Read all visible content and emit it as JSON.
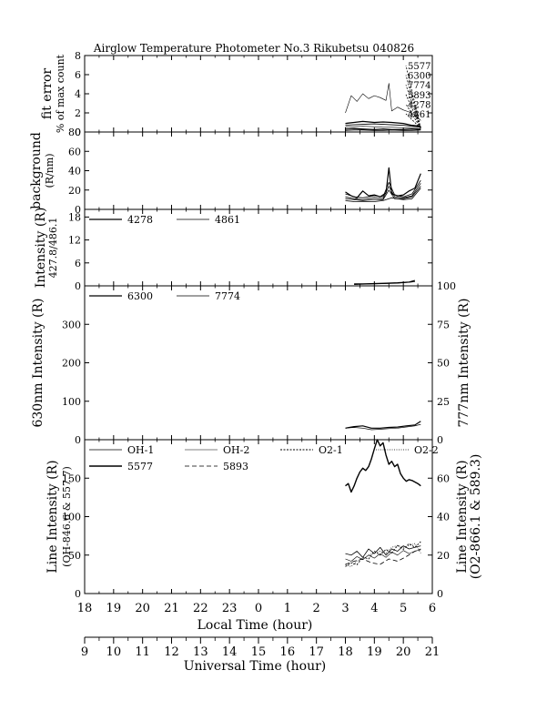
{
  "title": "Airglow Temperature Photometer No.3   Rikubetsu   040826",
  "colors": {
    "line": "#000000",
    "background": "#ffffff"
  },
  "axes": {
    "local_time": {
      "label": "Local Time (hour)",
      "ticks": [
        "18",
        "19",
        "20",
        "21",
        "22",
        "23",
        "0",
        "1",
        "2",
        "3",
        "4",
        "5",
        "6"
      ],
      "range": [
        18,
        30
      ]
    },
    "universal_time": {
      "label": "Universal Time (hour)",
      "ticks": [
        "9",
        "10",
        "11",
        "12",
        "13",
        "14",
        "15",
        "16",
        "17",
        "18",
        "19",
        "20",
        "21"
      ],
      "range": [
        9,
        21
      ]
    }
  },
  "chart_data": [
    {
      "type": "line",
      "ylabel": [
        "fit error",
        "% of max count"
      ],
      "yticks": [
        "0",
        "2",
        "4",
        "6",
        "8"
      ],
      "ylim": [
        0,
        8
      ],
      "legend": [
        "5577",
        "6300",
        "7774",
        "5893",
        "4278",
        "4861"
      ],
      "series": [
        {
          "name": "5577",
          "dash": "",
          "width": 0.6,
          "x": [
            27.0,
            27.2,
            27.4,
            27.6,
            27.8,
            28.0,
            28.2,
            28.4,
            28.5,
            28.6,
            28.8,
            29.0,
            29.2,
            29.4,
            29.6
          ],
          "values": [
            2.0,
            3.8,
            3.2,
            4.0,
            3.5,
            3.8,
            3.6,
            3.3,
            5.1,
            2.2,
            2.6,
            2.3,
            2.1,
            1.8,
            1.2
          ]
        },
        {
          "name": "6300",
          "dash": "",
          "width": 1.3,
          "x": [
            27.0,
            27.3,
            27.6,
            28.0,
            28.3,
            28.6,
            29.0,
            29.3,
            29.6
          ],
          "values": [
            0.9,
            1.0,
            1.1,
            1.0,
            1.05,
            1.0,
            0.9,
            0.7,
            0.6
          ]
        },
        {
          "name": "7774",
          "dash": "",
          "width": 0.9,
          "x": [
            27.0,
            27.3,
            27.6,
            28.0,
            28.3,
            28.6,
            29.0,
            29.3,
            29.6
          ],
          "values": [
            0.7,
            0.75,
            0.8,
            0.85,
            0.8,
            0.75,
            0.7,
            0.6,
            0.5
          ]
        },
        {
          "name": "5893",
          "dash": "",
          "width": 0.7,
          "x": [
            27.0,
            27.3,
            27.6,
            28.0,
            28.3,
            28.6,
            29.0,
            29.3,
            29.6
          ],
          "values": [
            0.5,
            0.55,
            0.6,
            0.55,
            0.5,
            0.5,
            0.45,
            0.4,
            0.35
          ]
        },
        {
          "name": "4278",
          "dash": "",
          "width": 1.3,
          "x": [
            27.0,
            27.3,
            27.6,
            28.0,
            28.3,
            28.6,
            29.0,
            29.3,
            29.6
          ],
          "values": [
            0.3,
            0.35,
            0.3,
            0.25,
            0.3,
            0.25,
            0.25,
            0.3,
            0.25
          ]
        },
        {
          "name": "4861",
          "dash": "",
          "width": 0.7,
          "x": [
            27.0,
            27.3,
            27.6,
            28.0,
            28.3,
            28.6,
            29.0,
            29.3,
            29.6
          ],
          "values": [
            0.15,
            0.2,
            0.2,
            0.15,
            0.15,
            0.2,
            0.15,
            0.15,
            0.2
          ]
        }
      ]
    },
    {
      "type": "line",
      "ylabel": [
        "background",
        "(R/nm)"
      ],
      "yticks": [
        "0",
        "20",
        "40",
        "60",
        "80"
      ],
      "ylim": [
        0,
        80
      ],
      "series": [
        {
          "name": "5577",
          "dash": "",
          "width": 1.2,
          "x": [
            27.0,
            27.2,
            27.4,
            27.6,
            27.8,
            28.0,
            28.2,
            28.4,
            28.5,
            28.6,
            28.8,
            29.0,
            29.2,
            29.4,
            29.6
          ],
          "values": [
            18,
            14,
            12,
            19,
            14,
            15,
            13,
            17,
            43,
            16,
            14,
            15,
            19,
            22,
            37
          ]
        },
        {
          "name": "6300",
          "dash": "",
          "width": 0.8,
          "x": [
            27.0,
            27.3,
            27.6,
            28.0,
            28.3,
            28.5,
            28.7,
            29.0,
            29.3,
            29.6
          ],
          "values": [
            16,
            13,
            12,
            14,
            13,
            28,
            15,
            13,
            16,
            30
          ]
        },
        {
          "name": "7774",
          "dash": "",
          "width": 0.8,
          "x": [
            27.0,
            27.3,
            27.6,
            28.0,
            28.3,
            28.5,
            28.7,
            29.0,
            29.3,
            29.6
          ],
          "values": [
            13,
            11,
            10,
            12,
            11,
            24,
            13,
            12,
            14,
            27
          ]
        },
        {
          "name": "5893",
          "dash": "",
          "width": 0.8,
          "x": [
            27.0,
            27.3,
            27.6,
            28.0,
            28.3,
            28.5,
            28.7,
            29.0,
            29.3,
            29.6
          ],
          "values": [
            11,
            10,
            9,
            10,
            10,
            20,
            11,
            11,
            13,
            24
          ]
        },
        {
          "name": "4278",
          "dash": "",
          "width": 0.8,
          "x": [
            27.0,
            27.3,
            27.6,
            28.0,
            28.3,
            28.6,
            29.0,
            29.3,
            29.6
          ],
          "values": [
            9,
            8,
            8,
            8,
            9,
            12,
            10,
            11,
            22
          ]
        }
      ]
    },
    {
      "type": "line",
      "ylabel": [
        "Intensity (R)",
        "427.8/486.1"
      ],
      "yticks": [
        "0",
        "6",
        "12",
        "18"
      ],
      "ylim": [
        0,
        20
      ],
      "legend": [
        "4278",
        "4861"
      ],
      "series": [
        {
          "name": "4278",
          "dash": "",
          "width": 1.2,
          "x": [
            27.3,
            27.6,
            28.0,
            28.4,
            28.8,
            29.2,
            29.4
          ],
          "values": [
            0.5,
            0.5,
            0.6,
            0.7,
            0.8,
            1.0,
            1.4
          ]
        },
        {
          "name": "4861",
          "dash": "",
          "width": 0.7,
          "x": [
            27.3,
            27.6,
            28.0,
            28.4,
            28.8,
            29.2,
            29.4
          ],
          "values": [
            0.3,
            0.4,
            0.5,
            0.6,
            0.7,
            0.9,
            1.1
          ]
        }
      ]
    },
    {
      "type": "line",
      "ylabel": [
        "630nm Intensity  (R)"
      ],
      "ylabel_right": [
        "777nm Intensity  (R)"
      ],
      "yticks": [
        "0",
        "100",
        "200",
        "300"
      ],
      "ylim": [
        0,
        400
      ],
      "yticks_right": [
        "0",
        "25",
        "50",
        "75",
        "100"
      ],
      "ylim_right": [
        0,
        100
      ],
      "legend": [
        "6300",
        "7774"
      ],
      "series": [
        {
          "name": "6300",
          "dash": "",
          "width": 1.2,
          "x": [
            27.0,
            27.3,
            27.6,
            27.9,
            28.2,
            28.5,
            28.8,
            29.1,
            29.4,
            29.6
          ],
          "values": [
            30,
            34,
            36,
            30,
            30,
            32,
            33,
            36,
            38,
            48
          ]
        },
        {
          "name": "7774",
          "dash": "",
          "width": 0.7,
          "axis": "right",
          "x": [
            27.0,
            27.3,
            27.6,
            27.9,
            28.2,
            28.5,
            28.8,
            29.1,
            29.4,
            29.6
          ],
          "values": [
            7.5,
            8.0,
            7.5,
            6.5,
            6.8,
            7.2,
            7.5,
            8.3,
            9.0,
            10.0
          ]
        }
      ]
    },
    {
      "type": "line",
      "ylabel": [
        "Line Intensity (R)",
        "(OH-846.6 & 557.7)"
      ],
      "ylabel_right": [
        "Line Intensity (R)",
        "(O2-866.1 & 589.3)"
      ],
      "yticks": [
        "0",
        "50",
        "100",
        "150"
      ],
      "ylim": [
        0,
        200
      ],
      "yticks_right": [
        "0",
        "20",
        "40",
        "60"
      ],
      "ylim_right": [
        0,
        80
      ],
      "legend": [
        "OH-1",
        "OH-2",
        "O2-1",
        "O2-2",
        "5577",
        "5893"
      ],
      "series": [
        {
          "name": "OH-1",
          "dash": "",
          "width": 0.8,
          "x": [
            27.0,
            27.2,
            27.4,
            27.6,
            27.8,
            28.0,
            28.2,
            28.4,
            28.6,
            28.8,
            29.0,
            29.2,
            29.4,
            29.6
          ],
          "values": [
            52,
            50,
            55,
            47,
            58,
            52,
            60,
            50,
            58,
            55,
            62,
            58,
            60,
            62
          ]
        },
        {
          "name": "OH-2",
          "dash": "",
          "width": 0.6,
          "x": [
            27.0,
            27.2,
            27.4,
            27.6,
            27.8,
            28.0,
            28.2,
            28.4,
            28.6,
            28.8,
            29.0,
            29.2,
            29.4,
            29.6
          ],
          "values": [
            45,
            42,
            48,
            44,
            50,
            46,
            52,
            47,
            54,
            50,
            56,
            52,
            55,
            57
          ]
        },
        {
          "name": "O2-1",
          "dash": "2,1.5",
          "width": 0.9,
          "axis": "right",
          "x": [
            27.0,
            27.2,
            27.4,
            27.6,
            27.8,
            28.0,
            28.2,
            28.4,
            28.6,
            28.8,
            29.0,
            29.2,
            29.4,
            29.6
          ],
          "values": [
            14,
            16,
            15,
            19,
            18,
            22,
            20,
            23,
            21,
            25,
            23,
            26,
            24,
            27
          ]
        },
        {
          "name": "O2-2",
          "dash": "1,1.5",
          "width": 0.7,
          "axis": "right",
          "x": [
            27.0,
            27.2,
            27.4,
            27.6,
            27.8,
            28.0,
            28.2,
            28.4,
            28.6,
            28.8,
            29.0,
            29.2,
            29.4,
            29.6
          ],
          "values": [
            15,
            14,
            17,
            18,
            20,
            21,
            22,
            21,
            24,
            25,
            24,
            25,
            26,
            21
          ]
        },
        {
          "name": "5577",
          "dash": "",
          "width": 1.4,
          "x": [
            27.0,
            27.1,
            27.2,
            27.3,
            27.4,
            27.5,
            27.6,
            27.7,
            27.8,
            27.9,
            28.0,
            28.1,
            28.2,
            28.3,
            28.4,
            28.5,
            28.6,
            28.7,
            28.8,
            28.9,
            29.0,
            29.1,
            29.2,
            29.3,
            29.4,
            29.5,
            29.6
          ],
          "values": [
            140,
            143,
            132,
            140,
            150,
            158,
            163,
            160,
            165,
            175,
            188,
            200,
            192,
            196,
            180,
            168,
            172,
            165,
            168,
            156,
            150,
            146,
            148,
            147,
            145,
            143,
            140
          ]
        },
        {
          "name": "5893",
          "dash": "5,3",
          "width": 0.8,
          "x": [
            27.0,
            27.3,
            27.6,
            27.9,
            28.2,
            28.5,
            28.8,
            29.1,
            29.4,
            29.6
          ],
          "values": [
            38,
            42,
            45,
            40,
            38,
            45,
            42,
            48,
            55,
            58
          ]
        }
      ]
    }
  ]
}
